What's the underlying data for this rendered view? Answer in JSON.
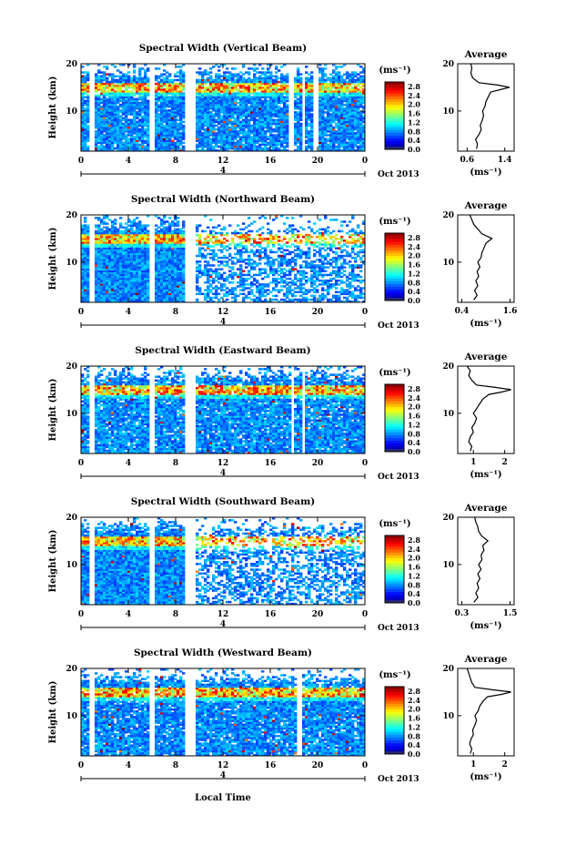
{
  "figure": {
    "xlabel": "Local Time",
    "ylabel": "Height (km)",
    "month_label": "Oct 2013",
    "day_label": "4",
    "colorbar_unit": "(ms⁻¹)",
    "avg_title": "Average",
    "avg_xlabel": "(ms⁻¹)"
  },
  "chart_data": [
    {
      "type": "heatmap",
      "title": "Spectral Width (Vertical Beam)",
      "xlabel": "Local Time",
      "ylabel": "Height (km)",
      "x_ticks": [
        "0",
        "4",
        "8",
        "12",
        "16",
        "20",
        "0"
      ],
      "x_range": [
        0,
        24
      ],
      "y_ticks": [
        10,
        20
      ],
      "y_range": [
        1.5,
        20
      ],
      "colorbar": {
        "label": "(ms⁻¹)",
        "ticks": [
          "0.0",
          "0.4",
          "0.8",
          "1.2",
          "1.6",
          "2.0",
          "2.4",
          "2.8"
        ],
        "range": [
          0,
          3.0
        ]
      },
      "data_gaps_hours": [
        [
          0.8,
          1.2
        ],
        [
          5.7,
          6.2
        ],
        [
          8.8,
          9.6
        ],
        [
          17.5,
          17.9
        ],
        [
          18.7,
          19.0
        ],
        [
          19.7,
          20.1
        ]
      ],
      "tropopause_km": 15,
      "profile": {
        "title": "Average",
        "xlabel": "(ms⁻¹)",
        "x_ticks": [
          "0.6",
          "1.4"
        ],
        "x_range": [
          0.4,
          1.6
        ],
        "heights": [
          2,
          3,
          4,
          5,
          6,
          7,
          8,
          9,
          10,
          11,
          12,
          13,
          14,
          14.5,
          15,
          15.5,
          16,
          17,
          18,
          19,
          20
        ],
        "values": [
          0.8,
          0.82,
          0.78,
          0.85,
          0.9,
          0.88,
          0.92,
          0.95,
          0.93,
          0.98,
          1.0,
          1.05,
          1.1,
          1.3,
          1.5,
          1.25,
          0.85,
          0.72,
          0.68,
          0.7,
          0.68
        ]
      }
    },
    {
      "type": "heatmap",
      "title": "Spectral Width (Northward Beam)",
      "xlabel": "Local Time",
      "ylabel": "Height (km)",
      "x_ticks": [
        "0",
        "4",
        "8",
        "12",
        "16",
        "20",
        "0"
      ],
      "x_range": [
        0,
        24
      ],
      "y_ticks": [
        10,
        20
      ],
      "y_range": [
        1.5,
        20
      ],
      "colorbar": {
        "label": "(ms⁻¹)",
        "ticks": [
          "0.0",
          "0.4",
          "0.8",
          "1.2",
          "1.6",
          "2.0",
          "2.4",
          "2.8"
        ],
        "range": [
          0,
          3.0
        ]
      },
      "data_gaps_hours": [
        [
          0.8,
          1.2
        ],
        [
          5.7,
          6.2
        ],
        [
          8.8,
          9.6
        ]
      ],
      "tropopause_km": 15,
      "profile": {
        "title": "Average",
        "xlabel": "(ms⁻¹)",
        "x_ticks": [
          "0.4",
          "1.6"
        ],
        "x_range": [
          0.3,
          1.7
        ],
        "heights": [
          2,
          3,
          4,
          5,
          6,
          7,
          8,
          9,
          10,
          11,
          12,
          13,
          14,
          15,
          16,
          17,
          18,
          19,
          20
        ],
        "values": [
          0.7,
          0.78,
          0.72,
          0.8,
          0.75,
          0.82,
          0.78,
          0.85,
          0.8,
          0.88,
          0.9,
          0.95,
          1.0,
          1.15,
          0.9,
          0.8,
          0.7,
          0.65,
          0.6
        ]
      }
    },
    {
      "type": "heatmap",
      "title": "Spectral Width (Eastward Beam)",
      "xlabel": "Local Time",
      "ylabel": "Height (km)",
      "x_ticks": [
        "0",
        "4",
        "8",
        "12",
        "16",
        "20",
        "0"
      ],
      "x_range": [
        0,
        24
      ],
      "y_ticks": [
        10,
        20
      ],
      "y_range": [
        1.5,
        20
      ],
      "colorbar": {
        "label": "(ms⁻¹)",
        "ticks": [
          "0.0",
          "0.4",
          "0.8",
          "1.2",
          "1.6",
          "2.0",
          "2.4",
          "2.8"
        ],
        "range": [
          0,
          3.0
        ]
      },
      "data_gaps_hours": [
        [
          0.8,
          1.2
        ],
        [
          5.7,
          6.2
        ],
        [
          8.8,
          9.6
        ],
        [
          17.7,
          18.0
        ],
        [
          18.6,
          19.0
        ]
      ],
      "tropopause_km": 15,
      "profile": {
        "title": "Average",
        "xlabel": "(ms⁻¹)",
        "x_ticks": [
          "1",
          "2"
        ],
        "x_range": [
          0.5,
          2.3
        ],
        "heights": [
          2,
          3,
          4,
          5,
          6,
          7,
          8,
          9,
          10,
          11,
          12,
          13,
          14,
          14.5,
          15,
          15.5,
          16,
          17,
          18,
          19,
          20
        ],
        "values": [
          0.9,
          0.95,
          0.85,
          0.9,
          1.0,
          0.95,
          1.05,
          1.1,
          1.0,
          1.1,
          1.2,
          1.3,
          1.5,
          1.9,
          2.2,
          1.7,
          1.1,
          0.95,
          0.85,
          0.9,
          0.8
        ]
      }
    },
    {
      "type": "heatmap",
      "title": "Spectral Width (Southward Beam)",
      "xlabel": "Local Time",
      "ylabel": "Height (km)",
      "x_ticks": [
        "0",
        "4",
        "8",
        "12",
        "16",
        "20",
        "0"
      ],
      "x_range": [
        0,
        24
      ],
      "y_ticks": [
        10,
        20
      ],
      "y_range": [
        1.5,
        20
      ],
      "colorbar": {
        "label": "(ms⁻¹)",
        "ticks": [
          "0.0",
          "0.4",
          "0.8",
          "1.2",
          "1.6",
          "2.0",
          "2.4",
          "2.8"
        ],
        "range": [
          0,
          3.0
        ]
      },
      "data_gaps_hours": [
        [
          0.8,
          1.2
        ],
        [
          5.7,
          6.2
        ],
        [
          8.8,
          9.6
        ]
      ],
      "tropopause_km": 15,
      "profile": {
        "title": "Average",
        "xlabel": "(ms⁻¹)",
        "x_ticks": [
          "0.3",
          "1.5"
        ],
        "x_range": [
          0.2,
          1.6
        ],
        "heights": [
          2,
          3,
          4,
          5,
          6,
          7,
          8,
          9,
          10,
          11,
          12,
          13,
          14,
          15,
          16,
          17,
          18,
          19,
          20
        ],
        "values": [
          0.6,
          0.7,
          0.65,
          0.72,
          0.68,
          0.75,
          0.7,
          0.78,
          0.72,
          0.8,
          0.78,
          0.85,
          0.82,
          0.95,
          0.8,
          0.72,
          0.7,
          0.65,
          0.62
        ]
      }
    },
    {
      "type": "heatmap",
      "title": "Spectral Width (Westward Beam)",
      "xlabel": "Local Time",
      "ylabel": "Height (km)",
      "x_ticks": [
        "0",
        "4",
        "8",
        "12",
        "16",
        "20",
        "0"
      ],
      "x_range": [
        0,
        24
      ],
      "y_ticks": [
        10,
        20
      ],
      "y_range": [
        1.5,
        20
      ],
      "colorbar": {
        "label": "(ms⁻¹)",
        "ticks": [
          "0.0",
          "0.4",
          "0.8",
          "1.2",
          "1.6",
          "2.0",
          "2.4",
          "2.8"
        ],
        "range": [
          0,
          3.0
        ]
      },
      "data_gaps_hours": [
        [
          0.8,
          1.2
        ],
        [
          5.7,
          6.2
        ],
        [
          8.8,
          9.6
        ],
        [
          18.3,
          18.7
        ]
      ],
      "tropopause_km": 15,
      "profile": {
        "title": "Average",
        "xlabel": "(ms⁻¹)",
        "x_ticks": [
          "1",
          "2"
        ],
        "x_range": [
          0.5,
          2.3
        ],
        "heights": [
          2,
          3,
          4,
          5,
          6,
          7,
          8,
          9,
          10,
          11,
          12,
          13,
          14,
          14.5,
          15,
          15.5,
          16,
          17,
          18,
          19,
          20
        ],
        "values": [
          0.9,
          0.95,
          0.88,
          0.92,
          1.0,
          0.98,
          1.05,
          1.1,
          1.05,
          1.15,
          1.2,
          1.3,
          1.45,
          1.9,
          2.2,
          1.6,
          1.05,
          0.95,
          0.9,
          0.85,
          0.8
        ]
      }
    }
  ]
}
